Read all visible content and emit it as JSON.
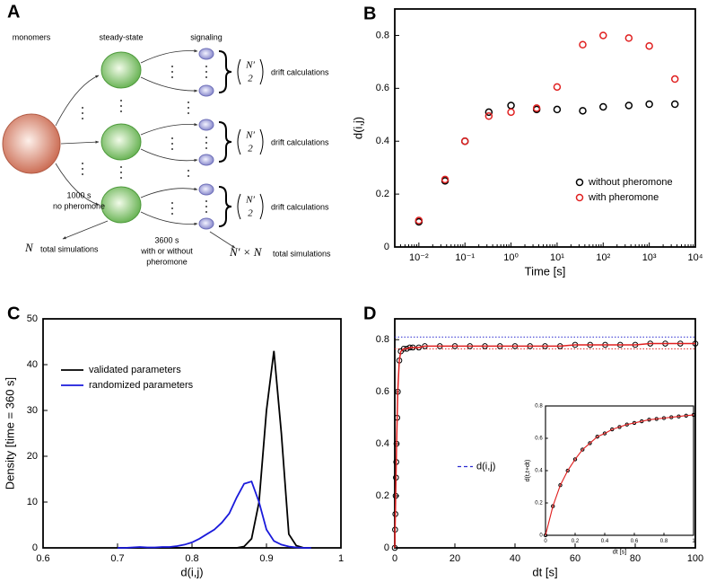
{
  "diagram": {
    "label": "A",
    "columns": [
      "monomers",
      "steady-state",
      "signaling"
    ],
    "left_note": [
      "1000 s",
      "no pheromone"
    ],
    "middle_note": [
      "3600 s",
      "with or without",
      "pheromone"
    ],
    "left_total": {
      "symbol": "N",
      "text": "total simulations"
    },
    "right_total": {
      "symbol": "N′ × N",
      "text": "total simulations"
    },
    "binomial": {
      "top": "N′",
      "bottom": "2"
    },
    "drift": [
      "drift calculations",
      "drift calculations",
      "drift calculations"
    ]
  },
  "chart_data": [
    {
      "type": "scatter",
      "label": "B",
      "xlabel": "Time [s]",
      "ylabel": "d(i,j)",
      "xlog": true,
      "x": [
        0.01,
        0.037,
        0.1,
        0.33,
        1,
        3.6,
        10,
        36,
        100,
        360,
        1000,
        3600
      ],
      "series": [
        {
          "name": "without pheromone",
          "color": "#000000",
          "kind": "scatter",
          "values": [
            0.095,
            0.25,
            0.4,
            0.51,
            0.535,
            0.52,
            0.52,
            0.515,
            0.53,
            0.535,
            0.54,
            0.54
          ]
        },
        {
          "name": "with pheromone",
          "color": "#e02020",
          "kind": "scatter",
          "values": [
            0.1,
            0.255,
            0.4,
            0.495,
            0.51,
            0.525,
            0.605,
            0.765,
            0.8,
            0.79,
            0.76,
            0.635
          ]
        }
      ],
      "xlim": [
        0.003,
        10000
      ],
      "xticks": [
        {
          "value": 0.01,
          "label": "10⁻²"
        },
        {
          "value": 0.1,
          "label": "10⁻¹"
        },
        {
          "value": 1,
          "label": "10⁰"
        },
        {
          "value": 10,
          "label": "10¹"
        },
        {
          "value": 100,
          "label": "10²"
        },
        {
          "value": 1000,
          "label": "10³"
        },
        {
          "value": 10000,
          "label": "10⁴"
        }
      ],
      "ylim": [
        0,
        0.9
      ],
      "yticks": [
        0,
        0.2,
        0.4,
        0.6,
        0.8
      ],
      "legend": "lower right"
    },
    {
      "type": "line",
      "label": "C",
      "xlabel": "d(i,j)",
      "ylabel": "Density [time = 360 s]",
      "x": [
        0.7,
        0.71,
        0.72,
        0.73,
        0.74,
        0.75,
        0.76,
        0.77,
        0.78,
        0.79,
        0.8,
        0.81,
        0.82,
        0.83,
        0.84,
        0.85,
        0.86,
        0.87,
        0.88,
        0.89,
        0.9,
        0.91,
        0.92,
        0.93,
        0.94,
        0.95,
        0.96
      ],
      "series": [
        {
          "name": "validated parameters",
          "color": "#000000",
          "kind": "line",
          "values": [
            0,
            0,
            0,
            0,
            0,
            0,
            0,
            0,
            0,
            0,
            0,
            0,
            0,
            0,
            0,
            0,
            0,
            0.3,
            2,
            10,
            30,
            43,
            25,
            3,
            0.5,
            0,
            0
          ]
        },
        {
          "name": "randomized parameters",
          "color": "#1a1adb",
          "kind": "line",
          "values": [
            0,
            0,
            0.1,
            0.2,
            0.1,
            0.1,
            0.2,
            0.2,
            0.4,
            0.7,
            1.2,
            2,
            3,
            4,
            5.5,
            7.5,
            11,
            14,
            14.5,
            10,
            4,
            1.5,
            0.7,
            0.3,
            0.1,
            0,
            0
          ]
        }
      ],
      "xlim": [
        0.6,
        1
      ],
      "xticks": [
        0.6,
        0.7,
        0.8,
        0.9,
        1
      ],
      "ylim": [
        0,
        50
      ],
      "yticks": [
        0,
        10,
        20,
        30,
        40,
        50
      ],
      "legend": "upper left"
    },
    {
      "type": "line",
      "label": "D",
      "xlabel": "dt [s]",
      "x": [
        0,
        0.1,
        0.2,
        0.3,
        0.4,
        0.5,
        0.6,
        0.8,
        1,
        1.5,
        2,
        3,
        4,
        5,
        6,
        8,
        10,
        15,
        20,
        25,
        30,
        35,
        40,
        45,
        50,
        55,
        60,
        65,
        70,
        75,
        80,
        85,
        90,
        95,
        100
      ],
      "series": [
        {
          "color": "#000000",
          "kind": "scatter",
          "values": [
            0,
            0.07,
            0.13,
            0.2,
            0.27,
            0.33,
            0.4,
            0.5,
            0.6,
            0.72,
            0.755,
            0.765,
            0.765,
            0.77,
            0.77,
            0.77,
            0.775,
            0.775,
            0.775,
            0.775,
            0.775,
            0.775,
            0.775,
            0.775,
            0.775,
            0.775,
            0.78,
            0.78,
            0.78,
            0.78,
            0.78,
            0.785,
            0.785,
            0.785,
            0.785
          ]
        },
        {
          "color": "#e02020",
          "kind": "line",
          "values": [
            0,
            0.07,
            0.13,
            0.2,
            0.27,
            0.33,
            0.4,
            0.5,
            0.6,
            0.72,
            0.755,
            0.765,
            0.765,
            0.77,
            0.77,
            0.77,
            0.775,
            0.775,
            0.775,
            0.775,
            0.775,
            0.775,
            0.775,
            0.775,
            0.775,
            0.775,
            0.78,
            0.78,
            0.78,
            0.78,
            0.78,
            0.785,
            0.785,
            0.785,
            0.785
          ]
        }
      ],
      "hlines": [
        {
          "name": "d(i,j)",
          "value": 0.81,
          "color": "#2a2ad0"
        },
        {
          "value": 0.765,
          "color": "#e02020"
        }
      ],
      "xlim": [
        0,
        100
      ],
      "xticks": [
        0,
        20,
        40,
        60,
        80,
        100
      ],
      "ylim": [
        0,
        0.88
      ],
      "yticks": [
        0,
        0.2,
        0.4,
        0.6,
        0.8
      ],
      "legend": "center left"
    },
    {
      "type": "line",
      "xlabel": "dt [s]",
      "ylabel": "d(t,t+dt)",
      "x": [
        0,
        0.05,
        0.1,
        0.15,
        0.2,
        0.25,
        0.3,
        0.35,
        0.4,
        0.45,
        0.5,
        0.55,
        0.6,
        0.65,
        0.7,
        0.75,
        0.8,
        0.85,
        0.9,
        0.95,
        1
      ],
      "series": [
        {
          "color": "#000000",
          "kind": "scatter",
          "values": [
            0,
            0.18,
            0.31,
            0.4,
            0.47,
            0.53,
            0.57,
            0.61,
            0.63,
            0.655,
            0.67,
            0.685,
            0.695,
            0.705,
            0.715,
            0.72,
            0.725,
            0.73,
            0.735,
            0.74,
            0.745
          ]
        },
        {
          "color": "#e02020",
          "kind": "line",
          "values": [
            0,
            0.18,
            0.31,
            0.4,
            0.47,
            0.53,
            0.57,
            0.61,
            0.63,
            0.655,
            0.67,
            0.685,
            0.695,
            0.705,
            0.715,
            0.72,
            0.725,
            0.73,
            0.735,
            0.74,
            0.745
          ]
        }
      ],
      "xlim": [
        0,
        1
      ],
      "xticks": [
        0,
        0.2,
        0.4,
        0.6,
        0.8,
        1
      ],
      "ylim": [
        0,
        0.8
      ],
      "yticks": [
        0,
        0.2,
        0.4,
        0.6,
        0.8
      ]
    }
  ]
}
